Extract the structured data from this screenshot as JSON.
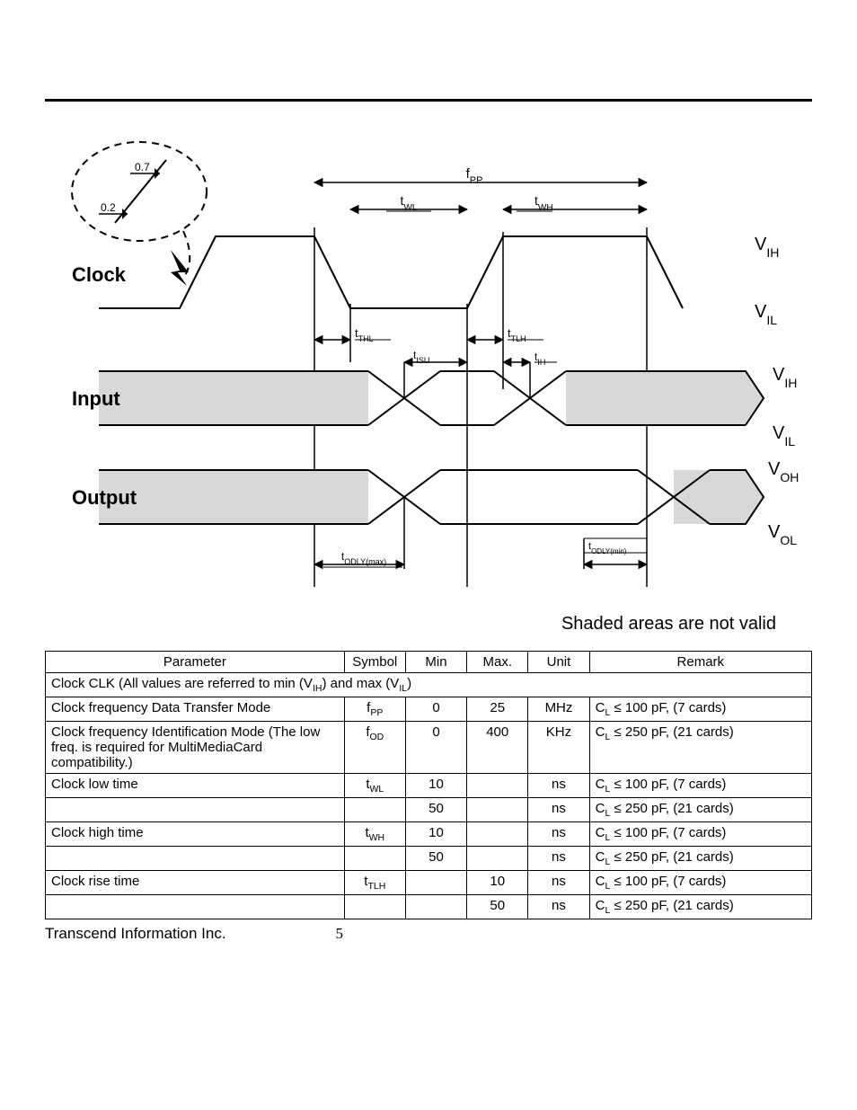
{
  "diagram": {
    "labels": {
      "clock": "Clock",
      "input": "Input",
      "output": "Output",
      "fpp": "f",
      "fpp_sub": "PP",
      "twl": "t",
      "twl_sub": "WL",
      "twh": "t",
      "twh_sub": "WH",
      "tthl": "t",
      "tthl_sub": "THL",
      "ttlh": "t",
      "ttlh_sub": "TLH",
      "tisu": "t",
      "tisu_sub": "ISU",
      "tih": "t",
      "tih_sub": "IH",
      "todlymax": "t",
      "todlymax_sub": "ODLY(max)",
      "todlymin": "t",
      "todlymin_sub": "ODLY(min)",
      "vih": "V",
      "vih_sub": "IH",
      "vil": "V",
      "vil_sub": "IL",
      "voh": "V",
      "voh_sub": "OH",
      "vol": "V",
      "vol_sub": "OL",
      "pt_hi": "0.7",
      "pt_lo": "0.2"
    },
    "caption": "Shaded areas are not valid",
    "colors": {
      "stroke": "#000000",
      "shade": "#d8d8d8",
      "bg": "#ffffff"
    }
  },
  "table": {
    "headers": [
      "Parameter",
      "Symbol",
      "Min",
      "Max.",
      "Unit",
      "Remark"
    ],
    "section": "Clock CLK (All values are referred to min (V",
    "section_sub1": "IH",
    "section_mid": ") and max (V",
    "section_sub2": "IL",
    "section_end": ")",
    "rows": [
      {
        "param": "Clock frequency Data Transfer Mode",
        "sym": "f",
        "sym_sub": "PP",
        "min": "0",
        "max": "25",
        "unit": "MHz",
        "rem": "C",
        "rem_sub": "L",
        "rem_tail": " ≤ 100 pF, (7 cards)"
      },
      {
        "param": "Clock frequency Identification Mode\n(The low freq. is required for MultiMediaCard compatibility.)",
        "sym": "f",
        "sym_sub": "OD",
        "min": "0",
        "max": "400",
        "unit": "KHz",
        "rem": "C",
        "rem_sub": "L",
        "rem_tail": " ≤ 250 pF, (21 cards)"
      },
      {
        "param": "Clock low time",
        "sym": "t",
        "sym_sub": "WL",
        "min": "10",
        "max": "",
        "unit": "ns",
        "rem": "C",
        "rem_sub": "L",
        "rem_tail": " ≤ 100 pF, (7 cards)"
      },
      {
        "param": "",
        "sym": "",
        "sym_sub": "",
        "min": "50",
        "max": "",
        "unit": "ns",
        "rem": "C",
        "rem_sub": "L",
        "rem_tail": " ≤ 250 pF, (21 cards)"
      },
      {
        "param": "Clock high time",
        "sym": "t",
        "sym_sub": "WH",
        "min": "10",
        "max": "",
        "unit": "ns",
        "rem": "C",
        "rem_sub": "L",
        "rem_tail": " ≤ 100 pF, (7 cards)"
      },
      {
        "param": "",
        "sym": "",
        "sym_sub": "",
        "min": "50",
        "max": "",
        "unit": "ns",
        "rem": "C",
        "rem_sub": "L",
        "rem_tail": " ≤ 250 pF, (21 cards)"
      },
      {
        "param": "Clock rise time",
        "sym": "t",
        "sym_sub": "TLH",
        "min": "",
        "max": "10",
        "unit": "ns",
        "rem": "C",
        "rem_sub": "L",
        "rem_tail": " ≤ 100 pF, (7 cards)"
      },
      {
        "param": "",
        "sym": "",
        "sym_sub": "",
        "min": "",
        "max": "50",
        "unit": "ns",
        "rem": "C",
        "rem_sub": "L",
        "rem_tail": " ≤ 250 pF, (21 cards)"
      }
    ]
  },
  "footer": {
    "company": "Transcend Information Inc.",
    "page": "5"
  }
}
